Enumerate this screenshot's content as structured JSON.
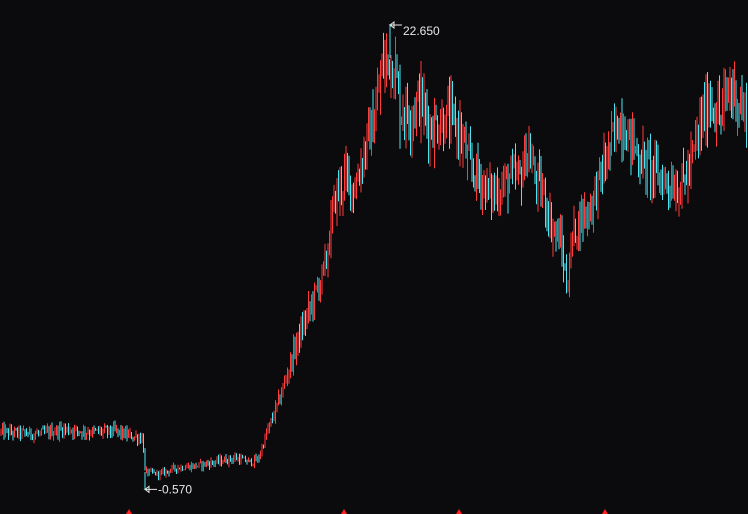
{
  "chart_data": {
    "type": "candlestick",
    "title": "",
    "xlabel": "",
    "ylabel": "",
    "ylim": [
      -1.3,
      23.0
    ],
    "grid": false,
    "colors": {
      "background": "#0b0b0d",
      "up": "#ff3b3b",
      "down": "#4fe3f0",
      "annotation": "#e8e8e8",
      "marker": "#ff2020"
    },
    "price_path": [
      [
        0,
        2.3
      ],
      [
        40,
        2.2
      ],
      [
        65,
        2.45
      ],
      [
        90,
        2.3
      ],
      [
        115,
        2.35
      ],
      [
        130,
        2.1
      ],
      [
        143,
        2.0
      ],
      [
        145,
        0.3
      ],
      [
        160,
        0.2
      ],
      [
        175,
        0.5
      ],
      [
        195,
        0.6
      ],
      [
        215,
        0.8
      ],
      [
        235,
        1.0
      ],
      [
        250,
        0.8
      ],
      [
        258,
        0.9
      ],
      [
        265,
        2.0
      ],
      [
        280,
        4.0
      ],
      [
        295,
        6.5
      ],
      [
        310,
        8.5
      ],
      [
        325,
        10.5
      ],
      [
        335,
        14.0
      ],
      [
        345,
        15.0
      ],
      [
        355,
        14.5
      ],
      [
        365,
        16.5
      ],
      [
        375,
        18.0
      ],
      [
        382,
        20.5
      ],
      [
        390,
        21.0
      ],
      [
        395,
        20.5
      ],
      [
        400,
        18.5
      ],
      [
        410,
        18.2
      ],
      [
        420,
        19.0
      ],
      [
        430,
        17.5
      ],
      [
        440,
        17.8
      ],
      [
        450,
        18.0
      ],
      [
        460,
        17.3
      ],
      [
        470,
        15.5
      ],
      [
        480,
        15.0
      ],
      [
        490,
        14.2
      ],
      [
        500,
        14.5
      ],
      [
        510,
        15.0
      ],
      [
        520,
        15.0
      ],
      [
        528,
        16.5
      ],
      [
        535,
        15.0
      ],
      [
        545,
        14.0
      ],
      [
        552,
        12.5
      ],
      [
        560,
        12.0
      ],
      [
        567,
        9.5
      ],
      [
        572,
        12.0
      ],
      [
        580,
        13.0
      ],
      [
        590,
        13.5
      ],
      [
        600,
        15.0
      ],
      [
        610,
        16.5
      ],
      [
        620,
        18.0
      ],
      [
        630,
        17.0
      ],
      [
        640,
        16.0
      ],
      [
        650,
        15.5
      ],
      [
        660,
        15.0
      ],
      [
        670,
        14.8
      ],
      [
        680,
        14.5
      ],
      [
        690,
        15.5
      ],
      [
        700,
        17.5
      ],
      [
        710,
        19.0
      ],
      [
        720,
        18.0
      ],
      [
        730,
        19.5
      ],
      [
        738,
        19.0
      ],
      [
        748,
        17.8
      ]
    ],
    "annotations": [
      {
        "label": "22.650",
        "value": 22.65,
        "position": "max"
      },
      {
        "label": "-0.570",
        "value": -0.57,
        "position": "min"
      }
    ],
    "bottom_markers": 4
  }
}
